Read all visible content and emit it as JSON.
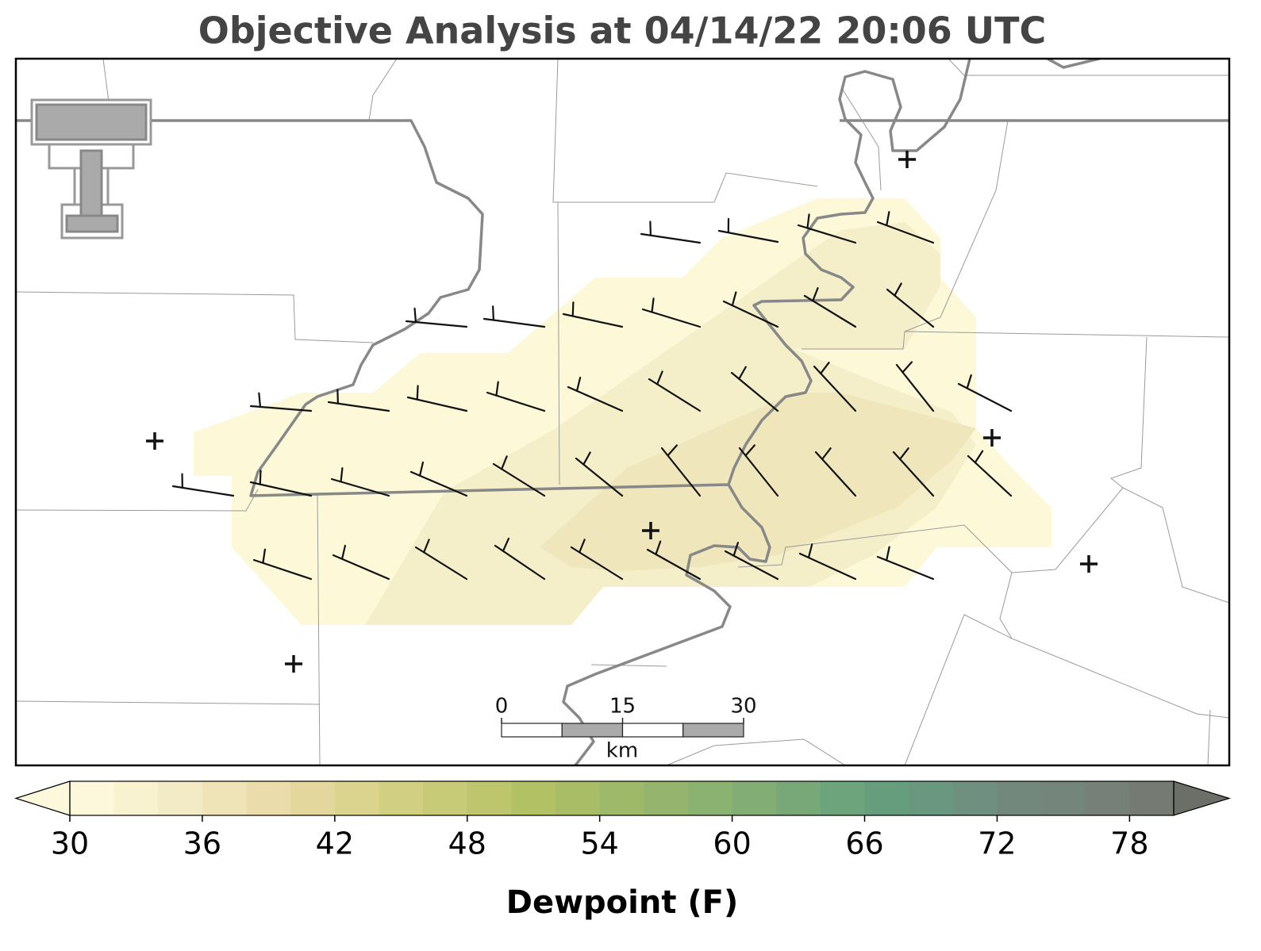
{
  "title": "Objective Analysis at 04/14/22 20:06 UTC",
  "scale_bar": {
    "lim": [
      0,
      30
    ],
    "ticks": [
      0,
      15,
      30
    ],
    "unit": "km"
  },
  "colorbar": {
    "label": "Dewpoint (F)",
    "lim": [
      30,
      80
    ],
    "ticks": [
      30,
      36,
      42,
      48,
      54,
      60,
      66,
      72,
      78
    ],
    "colors": [
      "#fdf8dc",
      "#f8f2d0",
      "#f3ebc5",
      "#efe4b8",
      "#ebdcab",
      "#e3d79d",
      "#dad48f",
      "#d1cf82",
      "#c7ca77",
      "#bdc66d",
      "#b2c164",
      "#a8bd66",
      "#9fb96b",
      "#95b56f",
      "#8cb272",
      "#82ad74",
      "#78a878",
      "#6ea47b",
      "#669e7d",
      "#6a977f",
      "#6f8f80",
      "#73887d",
      "#74857b",
      "#767f78",
      "#757b73"
    ],
    "under_color": "#fdf8dc",
    "over_color": "#6c6f68"
  }
}
